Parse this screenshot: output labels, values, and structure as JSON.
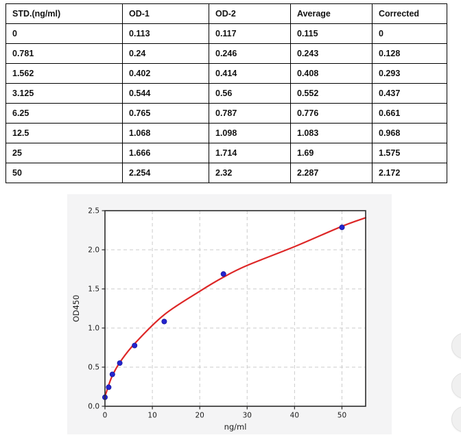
{
  "table": {
    "headers": [
      "STD.(ng/ml)",
      "OD-1",
      "OD-2",
      "Average",
      "Corrected"
    ],
    "rows": [
      [
        "0",
        "0.113",
        "0.117",
        "0.115",
        "0"
      ],
      [
        "0.781",
        "0.24",
        "0.246",
        "0.243",
        "0.128"
      ],
      [
        "1.562",
        "0.402",
        "0.414",
        "0.408",
        "0.293"
      ],
      [
        "3.125",
        "0.544",
        "0.56",
        "0.552",
        "0.437"
      ],
      [
        "6.25",
        "0.765",
        "0.787",
        "0.776",
        "0.661"
      ],
      [
        "12.5",
        "1.068",
        "1.098",
        "1.083",
        "0.968"
      ],
      [
        "25",
        "1.666",
        "1.714",
        "1.69",
        "1.575"
      ],
      [
        "50",
        "2.254",
        "2.32",
        "2.287",
        "2.172"
      ]
    ]
  },
  "chart_data": {
    "type": "scatter",
    "title": "",
    "xlabel": "ng/ml",
    "ylabel": "OD450",
    "xlim": [
      0,
      55
    ],
    "ylim": [
      0,
      2.5
    ],
    "x_ticks": [
      0,
      10,
      20,
      30,
      40,
      50
    ],
    "x_tick_labels": [
      "0",
      "10",
      "20",
      "30",
      "40",
      "50"
    ],
    "y_ticks": [
      0,
      0.5,
      1.0,
      1.5,
      2.0,
      2.5
    ],
    "y_tick_labels": [
      "0.0",
      "0.5",
      "1.0",
      "1.5",
      "2.0",
      "2.5"
    ],
    "grid": "dashed",
    "legend": "none",
    "series": [
      {
        "name": "standard-points",
        "type": "scatter",
        "marker": "circle",
        "color": "#2424cf",
        "x": [
          0,
          0.781,
          1.562,
          3.125,
          6.25,
          12.5,
          25,
          50
        ],
        "y": [
          0.115,
          0.243,
          0.408,
          0.552,
          0.776,
          1.083,
          1.69,
          2.287
        ]
      },
      {
        "name": "fitted-curve",
        "type": "line",
        "color": "#dd2727",
        "x": [
          0,
          0.4,
          0.781,
          1.562,
          3.125,
          6.25,
          12.5,
          20,
          25,
          30,
          40,
          50,
          55
        ],
        "y": [
          0.13,
          0.2,
          0.27,
          0.39,
          0.56,
          0.8,
          1.17,
          1.47,
          1.65,
          1.8,
          2.04,
          2.3,
          2.41
        ]
      }
    ],
    "colors": {
      "figure_bg": "#f4f4f5",
      "plot_bg": "#ffffff",
      "grid": "#cbcbcb",
      "spine": "#2b2b2b",
      "tick_text": "#1a1a1a"
    }
  }
}
